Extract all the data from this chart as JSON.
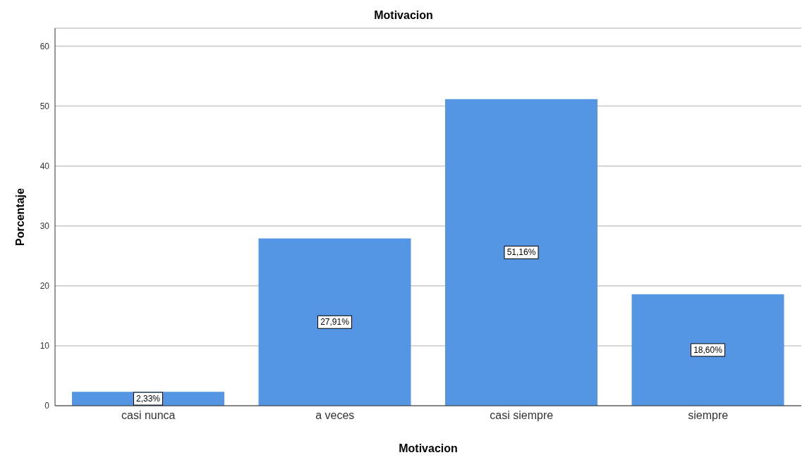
{
  "chart_data": {
    "type": "bar",
    "title": "Motivacion",
    "xlabel": "Motivacion",
    "ylabel": "Porcentaje",
    "categories": [
      "casi nunca",
      "a veces",
      "casi siempre",
      "siempre"
    ],
    "values": [
      2.33,
      27.91,
      51.16,
      18.6
    ],
    "color": "#5596e4",
    "value_labels": [
      "2,33%",
      "27,91%",
      "51,16%",
      "18,60%"
    ],
    "ylim": [
      0,
      63
    ],
    "yticks": [
      0,
      10,
      20,
      30,
      40,
      50,
      60
    ],
    "grid": "y"
  }
}
